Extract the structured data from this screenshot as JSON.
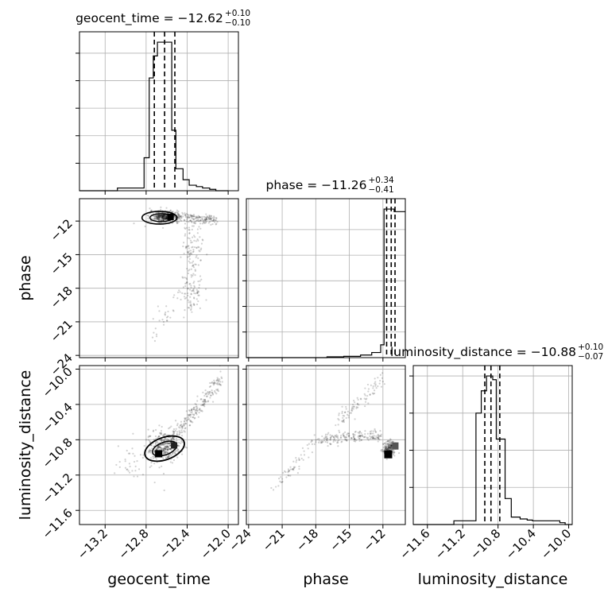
{
  "chart_data": {
    "type": "corner",
    "parameters": [
      "geocent_time",
      "phase",
      "luminosity_distance"
    ],
    "titles": [
      {
        "name": "geocent_time",
        "median": "−12.62",
        "plus": "+0.10",
        "minus": "−0.10"
      },
      {
        "name": "phase",
        "median": "−11.26",
        "plus": "+0.34",
        "minus": "−0.41"
      },
      {
        "name": "luminosity_distance",
        "median": "−10.88",
        "plus": "+0.10",
        "minus": "−0.07"
      }
    ],
    "axes": {
      "geocent_time": {
        "range": [
          -13.45,
          -11.9
        ],
        "ticks": [
          -13.2,
          -12.8,
          -12.4,
          -12.0
        ],
        "tick_labels": [
          "−13.2",
          "−12.8",
          "−12.4",
          "−12.0"
        ]
      },
      "phase": {
        "range": [
          -24.2,
          -10.0
        ],
        "ticks": [
          -24,
          -21,
          -18,
          -15,
          -12
        ],
        "tick_labels": [
          "−24",
          "−21",
          "−18",
          "−15",
          "−12"
        ]
      },
      "luminosity_distance": {
        "range": [
          -11.76,
          -9.96
        ],
        "ticks": [
          -11.6,
          -11.2,
          -10.8,
          -10.4,
          -10.0
        ],
        "tick_labels": [
          "−11.6",
          "−11.2",
          "−10.8",
          "−10.4",
          "−10.0"
        ]
      }
    },
    "histograms": {
      "geocent_time": {
        "edges": [
          -13.45,
          -13.08,
          -12.82,
          -12.77,
          -12.73,
          -12.69,
          -12.64,
          -12.55,
          -12.51,
          -12.44,
          -12.38,
          -12.31,
          -12.25,
          -12.18,
          -12.12,
          -12.0
        ],
        "counts": [
          0,
          1,
          12,
          41,
          49,
          54,
          54,
          22,
          8,
          4,
          2,
          1.5,
          1,
          0.5,
          0
        ],
        "quantiles": [
          -12.72,
          -12.62,
          -12.52
        ]
      },
      "phase": {
        "edges": [
          -24.2,
          -17.0,
          -15.5,
          -14.0,
          -13.0,
          -12.2,
          -11.9,
          -11.5,
          -11.0,
          -10.0
        ],
        "counts": [
          0,
          0.3,
          0.5,
          1,
          2,
          5,
          58,
          58,
          57
        ],
        "quantiles": [
          -11.67,
          -11.26,
          -10.92
        ]
      },
      "luminosity_distance": {
        "edges": [
          -11.76,
          -11.3,
          -11.05,
          -10.99,
          -10.93,
          -10.86,
          -10.82,
          -10.72,
          -10.65,
          -10.55,
          -10.47,
          -10.41,
          -10.35,
          -10.1,
          -10.04,
          -9.96
        ],
        "counts": [
          0,
          1,
          30,
          36,
          40,
          39,
          23,
          7,
          2,
          1.5,
          1.2,
          1,
          1,
          0.5,
          0
        ],
        "quantiles": [
          -10.95,
          -10.88,
          -10.78
        ]
      }
    },
    "grid": true
  }
}
